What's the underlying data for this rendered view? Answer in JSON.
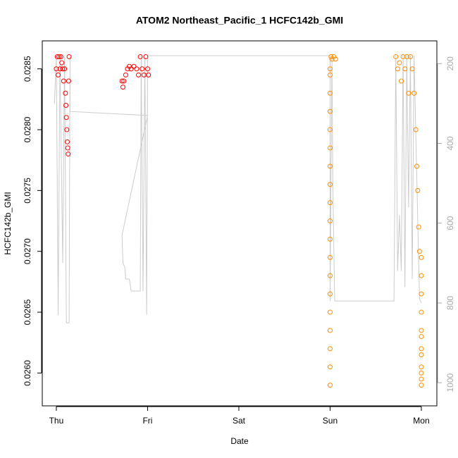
{
  "chart_data": {
    "type": "scatter",
    "title": "ATOM2 Northeast_Pacific_1 HCFC142b_GMI",
    "x_label": "Date",
    "y_label": "HCFC142b_GMI",
    "xlim": [
      -0.154,
      4.17
    ],
    "xticks": [
      {
        "value": 0,
        "label": "Thu"
      },
      {
        "value": 1,
        "label": "Fri"
      },
      {
        "value": 2,
        "label": "Sat"
      },
      {
        "value": 3,
        "label": "Sun"
      },
      {
        "value": 4,
        "label": "Mon"
      }
    ],
    "ylim": [
      0.02573,
      0.02873
    ],
    "yticks": [
      {
        "value": 0.026,
        "label": "0.0260"
      },
      0.0265,
      {
        "value": 0.027,
        "label": "0.0270"
      },
      0.0275,
      {
        "value": 0.028,
        "label": "0.0280"
      },
      0.0285
    ],
    "y2lim": [
      1058,
      143
    ],
    "y2ticks": [
      200,
      400,
      600,
      800,
      1000
    ],
    "series": [
      {
        "mode": "line",
        "axis": "y2",
        "color": "#cccccc",
        "x": [
          -0.02,
          0.0,
          0.02,
          0.04,
          0.07,
          0.09,
          0.11,
          0.14,
          0.15,
          0.15,
          1.0,
          0.72,
          0.73,
          0.75,
          0.76,
          0.8,
          0.82,
          0.92,
          0.93,
          0.95,
          0.97,
          0.99,
          1.0,
          3.0,
          3.0,
          3.02,
          3.03,
          3.05,
          3.7,
          3.72,
          3.74,
          3.76,
          3.78,
          3.8,
          3.82,
          3.84,
          3.86,
          3.88,
          3.9,
          3.92,
          3.98,
          4.0
        ],
        "values": [
          300,
          180,
          830,
          180,
          700,
          180,
          850,
          850,
          180,
          320,
          330,
          630,
          700,
          710,
          740,
          740,
          770,
          770,
          180,
          770,
          180,
          830,
          180,
          180,
          795,
          180,
          500,
          795,
          795,
          180,
          720,
          580,
          720,
          180,
          760,
          180,
          560,
          180,
          740,
          180,
          790,
          800
        ]
      },
      {
        "mode": "points",
        "color": "#ff0000",
        "x": [
          0.0,
          0.01,
          0.02,
          0.03,
          0.04,
          0.05,
          0.06,
          0.07,
          0.08,
          0.09,
          0.1,
          0.105,
          0.11,
          0.115,
          0.12,
          0.125,
          0.13,
          0.135,
          0.14,
          0.72,
          0.73,
          0.74,
          0.76,
          0.78,
          0.8,
          0.82,
          0.85,
          0.88,
          0.9,
          0.92,
          0.94,
          0.96,
          0.98,
          1.0,
          1.01
        ],
        "values": [
          0.0285,
          0.0286,
          0.02845,
          0.0286,
          0.0285,
          0.0286,
          0.02855,
          0.0285,
          0.0284,
          0.0285,
          0.0283,
          0.0282,
          0.0281,
          0.028,
          0.0279,
          0.02785,
          0.0278,
          0.0284,
          0.0286,
          0.0284,
          0.02835,
          0.0284,
          0.02845,
          0.0285,
          0.02852,
          0.0285,
          0.02852,
          0.0285,
          0.02845,
          0.0286,
          0.0285,
          0.02845,
          0.0286,
          0.0285,
          0.02845
        ]
      },
      {
        "mode": "points",
        "color": "#ff8c00",
        "x": [
          3.0,
          3.0,
          3.0,
          3.0,
          3.0,
          3.0,
          3.0,
          3.0,
          3.0,
          3.0,
          3.0,
          3.0,
          3.0,
          3.0,
          3.0,
          3.0,
          3.0,
          3.0,
          3.0,
          3.01,
          3.02,
          3.04,
          3.06,
          3.72,
          3.74,
          3.76,
          3.78,
          3.8,
          3.82,
          3.84,
          3.86,
          3.88,
          3.9,
          3.92,
          3.94,
          3.95,
          3.96,
          3.97,
          3.98,
          4.0,
          4.0,
          4.0,
          4.0,
          4.0,
          4.0,
          4.0,
          4.0,
          4.0,
          4.0,
          4.0,
          4.0
        ],
        "values": [
          0.0259,
          0.02605,
          0.0262,
          0.02635,
          0.0265,
          0.02665,
          0.0268,
          0.02695,
          0.0271,
          0.02725,
          0.0274,
          0.02755,
          0.0277,
          0.02785,
          0.028,
          0.02815,
          0.0283,
          0.02845,
          0.0285,
          0.0286,
          0.02858,
          0.0286,
          0.02858,
          0.0286,
          0.0285,
          0.02855,
          0.0284,
          0.0286,
          0.0285,
          0.0286,
          0.0283,
          0.0286,
          0.0285,
          0.0283,
          0.028,
          0.0277,
          0.0275,
          0.0272,
          0.027,
          0.02695,
          0.0268,
          0.02665,
          0.0265,
          0.02635,
          0.0262,
          0.02605,
          0.0259,
          0.02595,
          0.026,
          0.02615,
          0.0263
        ]
      }
    ]
  }
}
